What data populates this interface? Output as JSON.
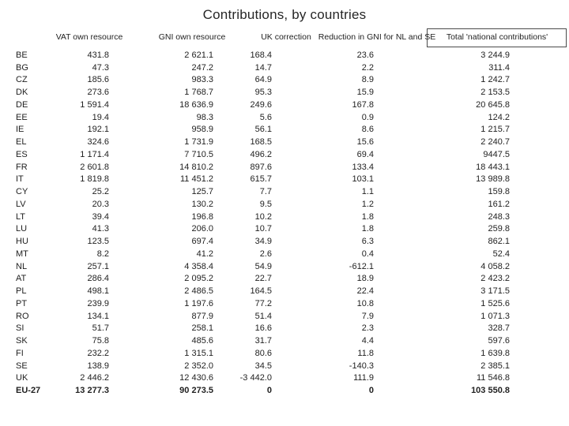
{
  "slide": {
    "title": "Contributions, by countries"
  },
  "table": {
    "columns": [
      "VAT own resource",
      "GNI own resource",
      "UK correction",
      "Reduction in GNI for NL and SE",
      "Total 'national contributions'"
    ],
    "rows": [
      {
        "code": "BE",
        "vat": "431.8",
        "gni": "2 621.1",
        "uk": "168.4",
        "red": "23.6",
        "total": "3 244.9"
      },
      {
        "code": "BG",
        "vat": "47.3",
        "gni": "247.2",
        "uk": "14.7",
        "red": "2.2",
        "total": "311.4"
      },
      {
        "code": "CZ",
        "vat": "185.6",
        "gni": "983.3",
        "uk": "64.9",
        "red": "8.9",
        "total": "1 242.7"
      },
      {
        "code": "DK",
        "vat": "273.6",
        "gni": "1 768.7",
        "uk": "95.3",
        "red": "15.9",
        "total": "2 153.5"
      },
      {
        "code": "DE",
        "vat": "1 591.4",
        "gni": "18 636.9",
        "uk": "249.6",
        "red": "167.8",
        "total": "20 645.8"
      },
      {
        "code": "EE",
        "vat": "19.4",
        "gni": "98.3",
        "uk": "5.6",
        "red": "0.9",
        "total": "124.2"
      },
      {
        "code": "IE",
        "vat": "192.1",
        "gni": "958.9",
        "uk": "56.1",
        "red": "8.6",
        "total": "1 215.7"
      },
      {
        "code": "EL",
        "vat": "324.6",
        "gni": "1 731.9",
        "uk": "168.5",
        "red": "15.6",
        "total": "2 240.7"
      },
      {
        "code": "ES",
        "vat": "1 171.4",
        "gni": "7 710.5",
        "uk": "496.2",
        "red": "69.4",
        "total": "9447.5"
      },
      {
        "code": "FR",
        "vat": "2 601.8",
        "gni": "14 810.2",
        "uk": "897.6",
        "red": "133.4",
        "total": "18 443.1"
      },
      {
        "code": "IT",
        "vat": "1 819.8",
        "gni": "11 451.2",
        "uk": "615.7",
        "red": "103.1",
        "total": "13 989.8"
      },
      {
        "code": "CY",
        "vat": "25.2",
        "gni": "125.7",
        "uk": "7.7",
        "red": "1.1",
        "total": "159.8"
      },
      {
        "code": "LV",
        "vat": "20.3",
        "gni": "130.2",
        "uk": "9.5",
        "red": "1.2",
        "total": "161.2"
      },
      {
        "code": "LT",
        "vat": "39.4",
        "gni": "196.8",
        "uk": "10.2",
        "red": "1.8",
        "total": "248.3"
      },
      {
        "code": "LU",
        "vat": "41.3",
        "gni": "206.0",
        "uk": "10.7",
        "red": "1.8",
        "total": "259.8"
      },
      {
        "code": "HU",
        "vat": "123.5",
        "gni": "697.4",
        "uk": "34.9",
        "red": "6.3",
        "total": "862.1"
      },
      {
        "code": "MT",
        "vat": "8.2",
        "gni": "41.2",
        "uk": "2.6",
        "red": "0.4",
        "total": "52.4"
      },
      {
        "code": "NL",
        "vat": "257.1",
        "gni": "4 358.4",
        "uk": "54.9",
        "red": "-612.1",
        "total": "4 058.2"
      },
      {
        "code": "AT",
        "vat": "286.4",
        "gni": "2 095.2",
        "uk": "22.7",
        "red": "18.9",
        "total": "2 423.2"
      },
      {
        "code": "PL",
        "vat": "498.1",
        "gni": "2 486.5",
        "uk": "164.5",
        "red": "22.4",
        "total": "3 171.5"
      },
      {
        "code": "PT",
        "vat": "239.9",
        "gni": "1 197.6",
        "uk": "77.2",
        "red": "10.8",
        "total": "1 525.6"
      },
      {
        "code": "RO",
        "vat": "134.1",
        "gni": "877.9",
        "uk": "51.4",
        "red": "7.9",
        "total": "1 071.3"
      },
      {
        "code": "SI",
        "vat": "51.7",
        "gni": "258.1",
        "uk": "16.6",
        "red": "2.3",
        "total": "328.7"
      },
      {
        "code": "SK",
        "vat": "75.8",
        "gni": "485.6",
        "uk": "31.7",
        "red": "4.4",
        "total": "597.6"
      },
      {
        "code": "FI",
        "vat": "232.2",
        "gni": "1 315.1",
        "uk": "80.6",
        "red": "11.8",
        "total": "1 639.8"
      },
      {
        "code": "SE",
        "vat": "138.9",
        "gni": "2 352.0",
        "uk": "34.5",
        "red": "-140.3",
        "total": "2 385.1"
      },
      {
        "code": "UK",
        "vat": "2 446.2",
        "gni": "12 430.6",
        "uk": "-3 442.0",
        "red": "111.9",
        "total": "11 546.8"
      }
    ],
    "total_row": {
      "code": "EU-27",
      "vat": "13 277.3",
      "gni": "90 273.5",
      "uk": "0",
      "red": "0",
      "total": "103 550.8"
    }
  }
}
